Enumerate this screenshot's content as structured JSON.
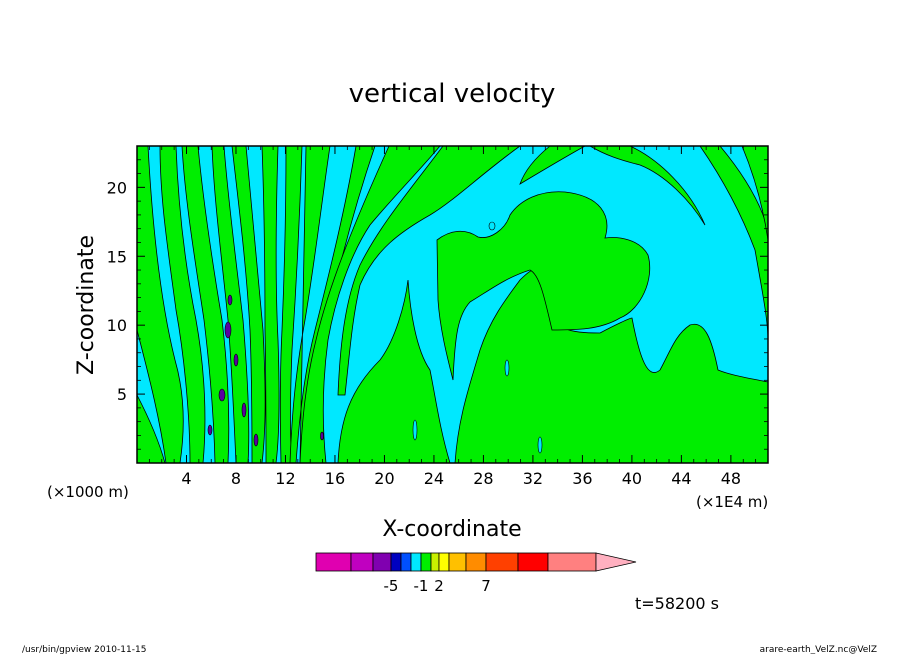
{
  "chart_data": {
    "type": "heatmap",
    "title": "vertical velocity",
    "xlabel": "X-coordinate",
    "ylabel": "Z-coordinate",
    "x_unit_left": "(×1000 m)",
    "x_unit_right": "(×1E4 m)",
    "xlim": [
      0,
      51
    ],
    "ylim": [
      0,
      23
    ],
    "xticks": [
      4,
      8,
      12,
      16,
      20,
      24,
      28,
      32,
      36,
      40,
      44,
      48
    ],
    "yticks": [
      5,
      10,
      15,
      20
    ],
    "regions_visible": [
      {
        "level": "-1 to 0",
        "color": "#00e8ff"
      },
      {
        "level": "0 to 1",
        "color": "#00ee00"
      }
    ],
    "colorbar": {
      "bins": [
        {
          "color": "#e000b0"
        },
        {
          "color": "#c000c0"
        },
        {
          "color": "#8000b0"
        },
        {
          "color": "#0000c0"
        },
        {
          "color": "#0050ff"
        },
        {
          "color": "#00e8ff"
        },
        {
          "color": "#00ee00"
        },
        {
          "color": "#c8f000"
        },
        {
          "color": "#ffff00"
        },
        {
          "color": "#ffc000"
        },
        {
          "color": "#ff8c00"
        },
        {
          "color": "#ff4000"
        },
        {
          "color": "#ff0000"
        },
        {
          "color": "#ff8080"
        }
      ],
      "overflow_color": "#ffb0c0",
      "labels": [
        {
          "text": "-5",
          "bin": 3
        },
        {
          "text": "-1",
          "bin": 6
        },
        {
          "text": "2",
          "bin": 8
        },
        {
          "text": "7",
          "bin": 11
        }
      ]
    },
    "time_label": "t=58200 s",
    "grid": false,
    "legend": "bottom-center"
  },
  "footer": {
    "left": "/usr/bin/gpview   2010-11-15",
    "right": "arare-earth_VelZ.nc@VelZ"
  }
}
